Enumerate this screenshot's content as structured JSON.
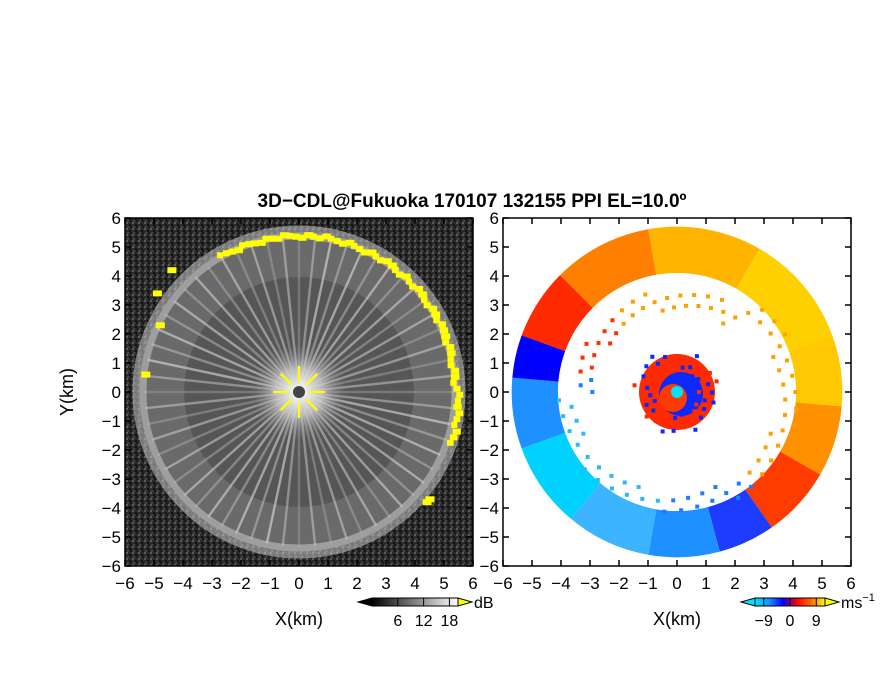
{
  "title": "3D−CDL@Fukuoka 170107 132155 PPI EL=10.0º",
  "chart_data": [
    {
      "type": "heatmap",
      "panel": "snr",
      "xlabel": "X(km)",
      "ylabel": "Y(km)",
      "xlim": [
        -6,
        6
      ],
      "ylim": [
        -6,
        6
      ],
      "xticks": [
        -6,
        -5,
        -4,
        -3,
        -2,
        -1,
        0,
        1,
        2,
        3,
        4,
        5,
        6
      ],
      "yticks": [
        -6,
        -5,
        -4,
        -3,
        -2,
        -1,
        0,
        1,
        2,
        3,
        4,
        5,
        6
      ],
      "xtick_labels": [
        "−6",
        "−5",
        "−4",
        "−3",
        "−2",
        "−1",
        "0",
        "1",
        "2",
        "3",
        "4",
        "5",
        "6"
      ],
      "ytick_labels": [
        "−6",
        "−5",
        "−4",
        "−3",
        "−2",
        "−1",
        "0",
        "1",
        "2",
        "3",
        "4",
        "5",
        "6"
      ],
      "colorbar": {
        "unit": "dB",
        "range": [
          0,
          20
        ],
        "ticks": [
          6,
          12,
          18
        ],
        "tick_labels": [
          "6",
          "12",
          "18"
        ],
        "colors": [
          "#000000",
          "#ffffff"
        ],
        "over_color": "#ffff00"
      },
      "echo_radius_km": 5.5,
      "grid": false
    },
    {
      "type": "heatmap",
      "panel": "doppler",
      "xlabel": "X(km)",
      "ylabel": "",
      "xlim": [
        -6,
        6
      ],
      "ylim": [
        -6,
        6
      ],
      "xticks": [
        -6,
        -5,
        -4,
        -3,
        -2,
        -1,
        0,
        1,
        2,
        3,
        4,
        5,
        6
      ],
      "xtick_labels": [
        "−6",
        "−5",
        "−4",
        "−3",
        "−2",
        "−1",
        "0",
        "1",
        "2",
        "3",
        "4",
        "5",
        "6"
      ],
      "ytick_labels": [
        "−6",
        "−5",
        "−4",
        "−3",
        "−2",
        "−1",
        "0",
        "1",
        "2",
        "3",
        "4",
        "5",
        "6"
      ],
      "colorbar": {
        "unit": "ms",
        "unit_exp": "−1",
        "range": [
          -12,
          12
        ],
        "ticks": [
          -9,
          0,
          9
        ],
        "tick_labels": [
          "−9",
          "0",
          "9"
        ],
        "colors": [
          "#00e5ff",
          "#1e8fff",
          "#0000ff",
          "#ff0000",
          "#ff6a00",
          "#ffff00"
        ]
      },
      "echo_radius_km": 5.7,
      "grid": false
    }
  ]
}
